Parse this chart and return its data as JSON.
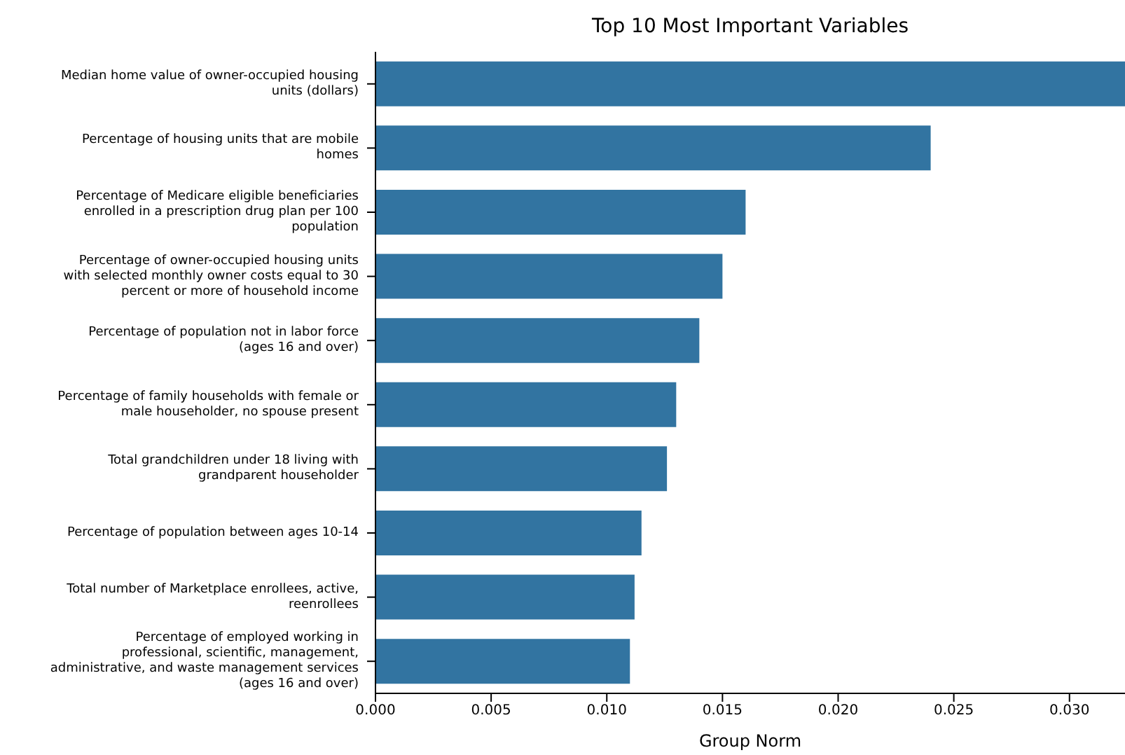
{
  "chart_data": {
    "type": "bar",
    "orientation": "horizontal",
    "title": "Top 10 Most Important Variables",
    "xlabel": "Group Norm",
    "categories": [
      "Median home value of owner-occupied housing units (dollars)",
      "Percentage of housing units that are mobile homes",
      "Percentage of Medicare eligible beneficiaries enrolled in a prescription drug plan per 100 population",
      "Percentage of owner-occupied housing units with selected monthly owner costs equal to 30 percent or more of household income",
      "Percentage of population not in labor force (ages 16 and over)",
      "Percentage of family households with female or male householder, no spouse present",
      "Total grandchildren under 18 living with grandparent householder",
      "Percentage of population between ages 10-14",
      "Total number of Marketplace enrollees, active, reenrollees",
      "Percentage of employed working in professional, scientific, management, administrative, and waste management services (ages 16 and over)"
    ],
    "values": [
      0.0324,
      0.024,
      0.016,
      0.015,
      0.014,
      0.013,
      0.0126,
      0.0115,
      0.0112,
      0.011
    ],
    "color": "#3274a1",
    "xlim": [
      0,
      0.0324
    ],
    "xticks": [
      {
        "value": 0,
        "label": "0.000"
      },
      {
        "value": 0.005,
        "label": "0.005"
      },
      {
        "value": 0.01,
        "label": "0.010"
      },
      {
        "value": 0.015,
        "label": "0.015"
      },
      {
        "value": 0.02,
        "label": "0.020"
      },
      {
        "value": 0.025,
        "label": "0.025"
      },
      {
        "value": 0.03,
        "label": "0.030"
      }
    ],
    "grid": false,
    "legend": false
  }
}
